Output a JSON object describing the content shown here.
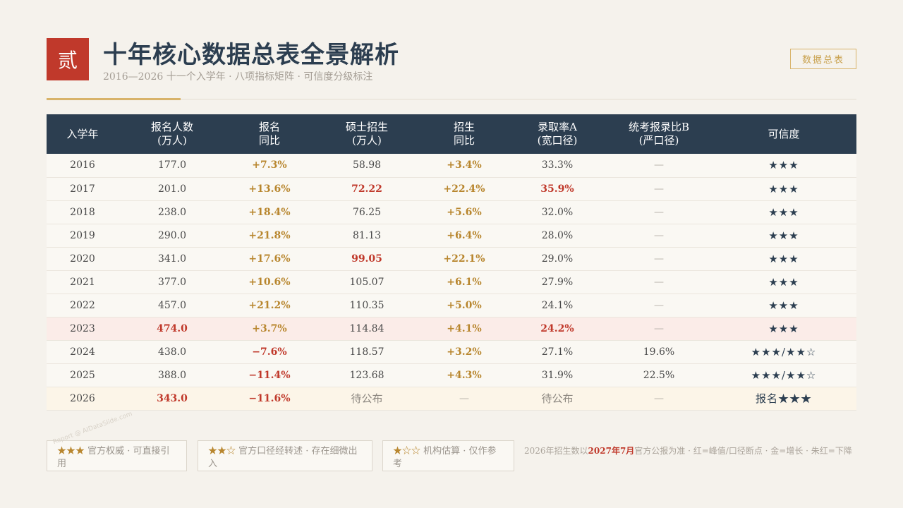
{
  "header": {
    "badge": "贰",
    "title": "十年核心数据总表全景解析",
    "subtitle": "2016—2026 十一个入学年 · 八项指标矩阵 · 可信度分级标注",
    "tag": "数据总表"
  },
  "table": {
    "columns": [
      {
        "l1": "入学年",
        "l2": ""
      },
      {
        "l1": "报名人数",
        "l2": "(万人)"
      },
      {
        "l1": "报名",
        "l2": "同比"
      },
      {
        "l1": "硕士招生",
        "l2": "(万人)"
      },
      {
        "l1": "招生",
        "l2": "同比"
      },
      {
        "l1": "录取率A",
        "l2": "(宽口径)"
      },
      {
        "l1": "统考报录比B",
        "l2": "(严口径)"
      },
      {
        "l1": "可信度",
        "l2": ""
      }
    ],
    "rows": [
      {
        "h": "",
        "cells": [
          {
            "t": "2016",
            "c": ""
          },
          {
            "t": "177.0",
            "c": ""
          },
          {
            "t": "+7.3%",
            "c": "gold"
          },
          {
            "t": "58.98",
            "c": ""
          },
          {
            "t": "+3.4%",
            "c": "gold"
          },
          {
            "t": "33.3%",
            "c": ""
          },
          {
            "t": "—",
            "c": "dash"
          },
          {
            "t": "★★★",
            "c": "stars"
          }
        ]
      },
      {
        "h": "",
        "cells": [
          {
            "t": "2017",
            "c": ""
          },
          {
            "t": "201.0",
            "c": ""
          },
          {
            "t": "+13.6%",
            "c": "gold"
          },
          {
            "t": "72.22",
            "c": "red"
          },
          {
            "t": "+22.4%",
            "c": "gold"
          },
          {
            "t": "35.9%",
            "c": "red"
          },
          {
            "t": "—",
            "c": "dash"
          },
          {
            "t": "★★★",
            "c": "stars"
          }
        ]
      },
      {
        "h": "",
        "cells": [
          {
            "t": "2018",
            "c": ""
          },
          {
            "t": "238.0",
            "c": ""
          },
          {
            "t": "+18.4%",
            "c": "gold"
          },
          {
            "t": "76.25",
            "c": ""
          },
          {
            "t": "+5.6%",
            "c": "gold"
          },
          {
            "t": "32.0%",
            "c": ""
          },
          {
            "t": "—",
            "c": "dash"
          },
          {
            "t": "★★★",
            "c": "stars"
          }
        ]
      },
      {
        "h": "",
        "cells": [
          {
            "t": "2019",
            "c": ""
          },
          {
            "t": "290.0",
            "c": ""
          },
          {
            "t": "+21.8%",
            "c": "gold"
          },
          {
            "t": "81.13",
            "c": ""
          },
          {
            "t": "+6.4%",
            "c": "gold"
          },
          {
            "t": "28.0%",
            "c": ""
          },
          {
            "t": "—",
            "c": "dash"
          },
          {
            "t": "★★★",
            "c": "stars"
          }
        ]
      },
      {
        "h": "",
        "cells": [
          {
            "t": "2020",
            "c": ""
          },
          {
            "t": "341.0",
            "c": ""
          },
          {
            "t": "+17.6%",
            "c": "gold"
          },
          {
            "t": "99.05",
            "c": "red"
          },
          {
            "t": "+22.1%",
            "c": "gold"
          },
          {
            "t": "29.0%",
            "c": ""
          },
          {
            "t": "—",
            "c": "dash"
          },
          {
            "t": "★★★",
            "c": "stars"
          }
        ]
      },
      {
        "h": "",
        "cells": [
          {
            "t": "2021",
            "c": ""
          },
          {
            "t": "377.0",
            "c": ""
          },
          {
            "t": "+10.6%",
            "c": "gold"
          },
          {
            "t": "105.07",
            "c": ""
          },
          {
            "t": "+6.1%",
            "c": "gold"
          },
          {
            "t": "27.9%",
            "c": ""
          },
          {
            "t": "—",
            "c": "dash"
          },
          {
            "t": "★★★",
            "c": "stars"
          }
        ]
      },
      {
        "h": "",
        "cells": [
          {
            "t": "2022",
            "c": ""
          },
          {
            "t": "457.0",
            "c": ""
          },
          {
            "t": "+21.2%",
            "c": "gold"
          },
          {
            "t": "110.35",
            "c": ""
          },
          {
            "t": "+5.0%",
            "c": "gold"
          },
          {
            "t": "24.1%",
            "c": ""
          },
          {
            "t": "—",
            "c": "dash"
          },
          {
            "t": "★★★",
            "c": "stars"
          }
        ]
      },
      {
        "h": "hl-red",
        "cells": [
          {
            "t": "2023",
            "c": ""
          },
          {
            "t": "474.0",
            "c": "red"
          },
          {
            "t": "+3.7%",
            "c": "gold"
          },
          {
            "t": "114.84",
            "c": ""
          },
          {
            "t": "+4.1%",
            "c": "gold"
          },
          {
            "t": "24.2%",
            "c": "red"
          },
          {
            "t": "—",
            "c": "dash"
          },
          {
            "t": "★★★",
            "c": "stars"
          }
        ]
      },
      {
        "h": "",
        "cells": [
          {
            "t": "2024",
            "c": ""
          },
          {
            "t": "438.0",
            "c": ""
          },
          {
            "t": "−7.6%",
            "c": "red"
          },
          {
            "t": "118.57",
            "c": ""
          },
          {
            "t": "+3.2%",
            "c": "gold"
          },
          {
            "t": "27.1%",
            "c": ""
          },
          {
            "t": "19.6%",
            "c": ""
          },
          {
            "t": "★★★/★★☆",
            "c": "stars"
          }
        ]
      },
      {
        "h": "",
        "cells": [
          {
            "t": "2025",
            "c": ""
          },
          {
            "t": "388.0",
            "c": ""
          },
          {
            "t": "−11.4%",
            "c": "red"
          },
          {
            "t": "123.68",
            "c": ""
          },
          {
            "t": "+4.3%",
            "c": "gold"
          },
          {
            "t": "31.9%",
            "c": ""
          },
          {
            "t": "22.5%",
            "c": ""
          },
          {
            "t": "★★★/★★☆",
            "c": "stars"
          }
        ]
      },
      {
        "h": "hl-gold",
        "cells": [
          {
            "t": "2026",
            "c": ""
          },
          {
            "t": "343.0",
            "c": "red"
          },
          {
            "t": "−11.6%",
            "c": "red"
          },
          {
            "t": "待公布",
            "c": "pending"
          },
          {
            "t": "—",
            "c": "dash"
          },
          {
            "t": "待公布",
            "c": "pending"
          },
          {
            "t": "—",
            "c": "dash"
          },
          {
            "t": "报名★★★",
            "c": "stars"
          }
        ]
      }
    ]
  },
  "legend": [
    {
      "stars": "★★★",
      "text": " 官方权威 · 可直接引用"
    },
    {
      "stars": "★★☆",
      "text": " 官方口径经转述 · 存在细微出入"
    },
    {
      "stars": "★☆☆",
      "text": " 机构估算 · 仅作参考"
    }
  ],
  "note": {
    "pre": "2026年招生数以",
    "highlight": "2027年7月",
    "post": "官方公报为准 · 红=峰值/口径断点 · 金=增长 · 朱红=下降"
  },
  "watermark": "Report @ AIDataSlide.com",
  "colors": {
    "navy": "#2c3e50",
    "red": "#c0392b",
    "gold": "#b8862e",
    "paper": "#f5f2ec"
  }
}
